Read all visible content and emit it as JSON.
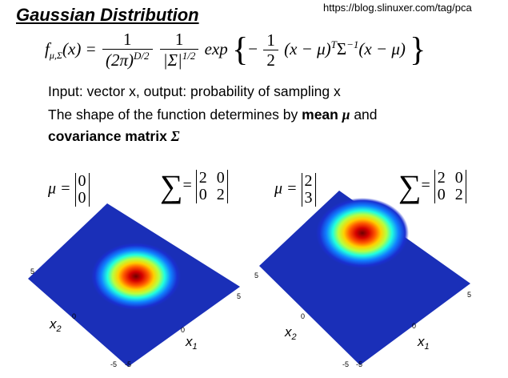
{
  "title": "Gaussian Distribution",
  "url": "https://blog.slinuxer.com/tag/pca",
  "formula": {
    "lhs": "f",
    "lhs_sub": "μ,Σ",
    "lhs_arg": "(x) =",
    "frac1_num": "1",
    "frac1_den_base": "(2π)",
    "frac1_den_exp": "D/2",
    "frac2_num": "1",
    "frac2_den_base": "|Σ|",
    "frac2_den_exp": "1/2",
    "exp": "exp",
    "frac3_num": "1",
    "frac3_den": "2",
    "body_a": "(x − μ)",
    "body_a_exp": "T",
    "body_b": "Σ",
    "body_b_exp": "−1",
    "body_c": "(x − μ)"
  },
  "desc": {
    "line1": "Input: vector x, output: probability of sampling x",
    "line2_pre": "The shape of the function determines by ",
    "line2_bold": "mean ",
    "line2_symbol": "μ",
    "line2_post": " and",
    "line3_bold": "covariance matrix ",
    "line3_symbol": "Σ"
  },
  "plots": [
    {
      "mu_label": "μ =",
      "mu": [
        "0",
        "0"
      ],
      "sigma_label": "=",
      "sigma": [
        [
          "2",
          "0"
        ],
        [
          "0",
          "2"
        ]
      ],
      "peak": [
        0,
        0
      ],
      "ticks": {
        "x1_5": "5",
        "x1_0": "0",
        "x1_n5": "-5",
        "x2_5": "5",
        "x2_0": "0",
        "x2_n5": "-5"
      },
      "axis_x1": "x",
      "axis_x1_sub": "1",
      "axis_x2": "x",
      "axis_x2_sub": "2"
    },
    {
      "mu_label": "μ =",
      "mu": [
        "2",
        "3"
      ],
      "sigma_label": "=",
      "sigma": [
        [
          "2",
          "0"
        ],
        [
          "0",
          "2"
        ]
      ],
      "peak": [
        2,
        3
      ],
      "ticks": {
        "x1_5": "5",
        "x1_0": "0",
        "x1_n5": "-5",
        "x2_5": "5",
        "x2_0": "0",
        "x2_n5": "-5"
      },
      "axis_x1": "x",
      "axis_x1_sub": "1",
      "axis_x2": "x",
      "axis_x2_sub": "2"
    }
  ],
  "colors": {
    "low": "#0a1a9e",
    "mid": "#00ffff",
    "high": "#8b0000"
  }
}
